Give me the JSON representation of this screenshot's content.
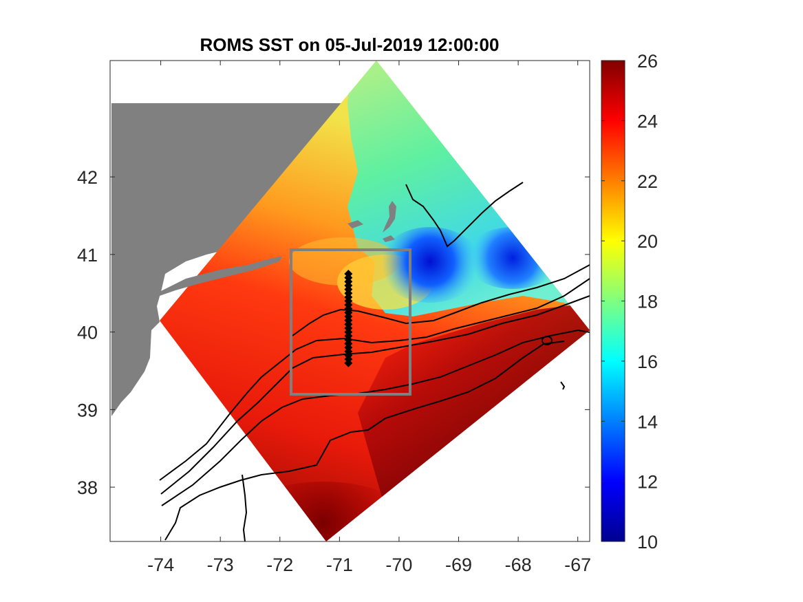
{
  "title": "ROMS SST on 05-Jul-2019 12:00:00",
  "map": {
    "lon_range": [
      -74.85,
      -66.8
    ],
    "lat_range": [
      37.3,
      43.5
    ],
    "x_ticks": [
      "-74",
      "-73",
      "-72",
      "-71",
      "-70",
      "-69",
      "-68",
      "-67"
    ],
    "x_tick_values": [
      -74,
      -73,
      -72,
      -71,
      -70,
      -69,
      -68,
      -67
    ],
    "y_ticks": [
      "42",
      "41",
      "40",
      "39",
      "38"
    ],
    "y_tick_values": [
      42,
      41,
      40,
      39,
      38
    ],
    "land_color": "#808080",
    "study_box": {
      "lon": [
        -71.75,
        -69.75
      ],
      "lat": [
        39.25,
        41.1
      ],
      "color": "#808080"
    },
    "transect": {
      "lon": -70.85,
      "lat_start": 40.75,
      "lat_end": 39.6,
      "count": 24,
      "color": "#000000"
    },
    "contour_color": "#000000"
  },
  "colorbar": {
    "ticks": [
      "26",
      "24",
      "22",
      "20",
      "18",
      "16",
      "14",
      "12",
      "10"
    ],
    "tick_values": [
      26,
      24,
      22,
      20,
      18,
      16,
      14,
      12,
      10
    ],
    "range": [
      10,
      26
    ],
    "colormap": "jet"
  }
}
